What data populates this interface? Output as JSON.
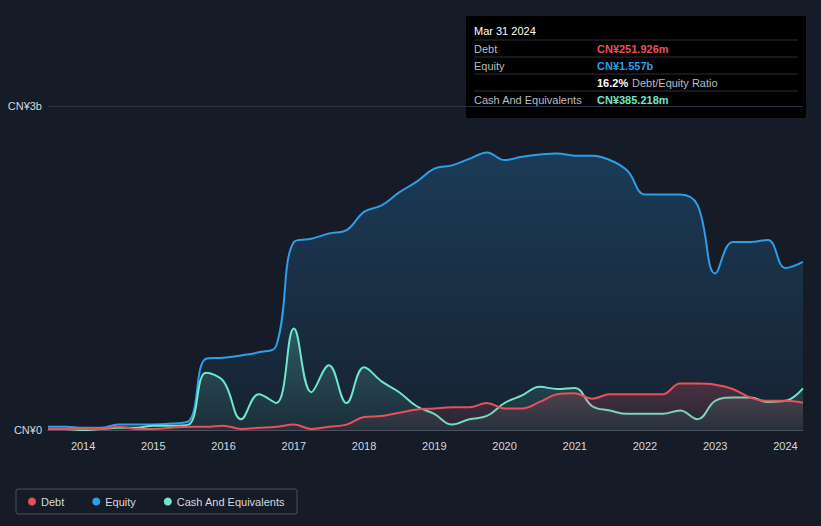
{
  "chart_data": {
    "type": "area",
    "x": [
      2013.5,
      2013.75,
      2014.0,
      2014.25,
      2014.5,
      2014.75,
      2015.0,
      2015.25,
      2015.5,
      2015.75,
      2016.0,
      2016.25,
      2016.5,
      2016.75,
      2017.0,
      2017.25,
      2017.5,
      2017.75,
      2018.0,
      2018.25,
      2018.5,
      2018.75,
      2019.0,
      2019.25,
      2019.5,
      2019.75,
      2020.0,
      2020.25,
      2020.5,
      2020.75,
      2021.0,
      2021.25,
      2021.5,
      2021.75,
      2022.0,
      2022.25,
      2022.5,
      2022.75,
      2023.0,
      2023.25,
      2023.5,
      2023.75,
      2024.0,
      2024.25
    ],
    "series": [
      {
        "name": "Debt",
        "color": "#e8505b",
        "values": [
          0.01,
          0.01,
          0.01,
          0.01,
          0.03,
          0.01,
          0.01,
          0.02,
          0.03,
          0.03,
          0.04,
          0.01,
          0.02,
          0.03,
          0.05,
          0.01,
          0.03,
          0.05,
          0.12,
          0.13,
          0.16,
          0.19,
          0.2,
          0.21,
          0.21,
          0.25,
          0.2,
          0.2,
          0.26,
          0.33,
          0.34,
          0.29,
          0.33,
          0.33,
          0.33,
          0.33,
          0.43,
          0.43,
          0.42,
          0.38,
          0.3,
          0.27,
          0.27,
          0.252
        ]
      },
      {
        "name": "Equity",
        "color": "#2e9ee8",
        "values": [
          0.03,
          0.03,
          0.02,
          0.02,
          0.05,
          0.05,
          0.05,
          0.06,
          0.08,
          0.66,
          0.67,
          0.69,
          0.72,
          0.78,
          1.74,
          1.77,
          1.82,
          1.85,
          2.02,
          2.08,
          2.2,
          2.3,
          2.42,
          2.45,
          2.51,
          2.57,
          2.5,
          2.53,
          2.55,
          2.56,
          2.54,
          2.54,
          2.5,
          2.4,
          2.18,
          2.18,
          2.18,
          2.08,
          1.45,
          1.74,
          1.74,
          1.76,
          1.5,
          1.557
        ]
      },
      {
        "name": "Cash And Equivalents",
        "color": "#6ee6c8",
        "values": [
          0.01,
          0.01,
          0.0,
          0.01,
          0.02,
          0.02,
          0.04,
          0.04,
          0.05,
          0.53,
          0.45,
          0.1,
          0.33,
          0.25,
          0.94,
          0.35,
          0.6,
          0.25,
          0.58,
          0.45,
          0.35,
          0.22,
          0.15,
          0.05,
          0.1,
          0.13,
          0.25,
          0.32,
          0.4,
          0.38,
          0.39,
          0.22,
          0.18,
          0.15,
          0.15,
          0.15,
          0.18,
          0.1,
          0.27,
          0.3,
          0.3,
          0.26,
          0.27,
          0.385
        ]
      }
    ],
    "xlim": [
      2013.5,
      2024.25
    ],
    "xticks": [
      2014,
      2015,
      2016,
      2017,
      2018,
      2019,
      2020,
      2021,
      2022,
      2023,
      2024
    ],
    "ylim": [
      0,
      3
    ],
    "yticks": [
      {
        "value": 0,
        "label": "CN¥0"
      },
      {
        "value": 3,
        "label": "CN¥3b"
      }
    ],
    "grid": true,
    "legend": "bottom-left",
    "info_box": {
      "title": "Mar 31 2024",
      "rows": [
        {
          "label": "Debt",
          "value": "CN¥251.926m",
          "color": "#e8505b"
        },
        {
          "label": "Equity",
          "value": "CN¥1.557b",
          "color": "#2e9ee8"
        },
        {
          "label": "Cash And Equivalents",
          "value": "CN¥385.218m",
          "color": "#6ee6c8"
        }
      ],
      "ratio": {
        "value": "16.2%",
        "text": "Debt/Equity Ratio"
      }
    }
  }
}
